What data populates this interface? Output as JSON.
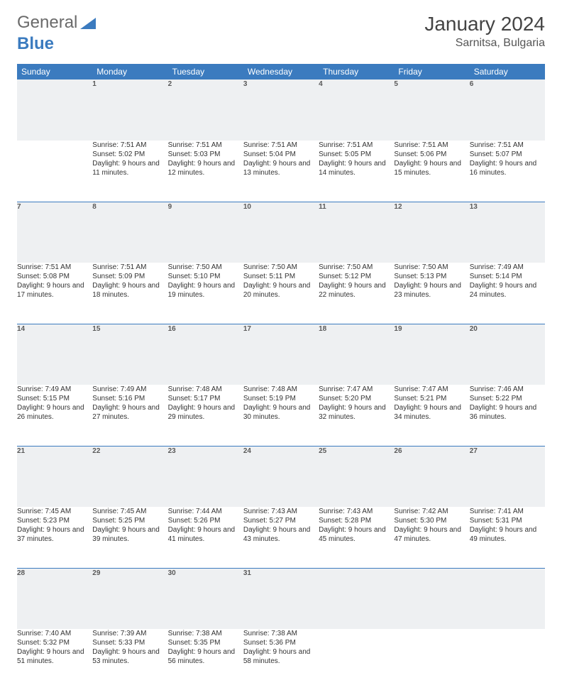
{
  "brand": {
    "part1": "General",
    "part2": "Blue"
  },
  "title": "January 2024",
  "location": "Sarnitsa, Bulgaria",
  "colors": {
    "header_bg": "#3b7bbf",
    "header_text": "#ffffff",
    "daynum_bg": "#eef0f2",
    "text": "#333333",
    "row_divider": "#3b7bbf"
  },
  "weekdays": [
    "Sunday",
    "Monday",
    "Tuesday",
    "Wednesday",
    "Thursday",
    "Friday",
    "Saturday"
  ],
  "weeks": [
    {
      "nums": [
        "",
        "1",
        "2",
        "3",
        "4",
        "5",
        "6"
      ],
      "cells": [
        null,
        {
          "sunrise": "7:51 AM",
          "sunset": "5:02 PM",
          "daylight": "9 hours and 11 minutes."
        },
        {
          "sunrise": "7:51 AM",
          "sunset": "5:03 PM",
          "daylight": "9 hours and 12 minutes."
        },
        {
          "sunrise": "7:51 AM",
          "sunset": "5:04 PM",
          "daylight": "9 hours and 13 minutes."
        },
        {
          "sunrise": "7:51 AM",
          "sunset": "5:05 PM",
          "daylight": "9 hours and 14 minutes."
        },
        {
          "sunrise": "7:51 AM",
          "sunset": "5:06 PM",
          "daylight": "9 hours and 15 minutes."
        },
        {
          "sunrise": "7:51 AM",
          "sunset": "5:07 PM",
          "daylight": "9 hours and 16 minutes."
        }
      ]
    },
    {
      "nums": [
        "7",
        "8",
        "9",
        "10",
        "11",
        "12",
        "13"
      ],
      "cells": [
        {
          "sunrise": "7:51 AM",
          "sunset": "5:08 PM",
          "daylight": "9 hours and 17 minutes."
        },
        {
          "sunrise": "7:51 AM",
          "sunset": "5:09 PM",
          "daylight": "9 hours and 18 minutes."
        },
        {
          "sunrise": "7:50 AM",
          "sunset": "5:10 PM",
          "daylight": "9 hours and 19 minutes."
        },
        {
          "sunrise": "7:50 AM",
          "sunset": "5:11 PM",
          "daylight": "9 hours and 20 minutes."
        },
        {
          "sunrise": "7:50 AM",
          "sunset": "5:12 PM",
          "daylight": "9 hours and 22 minutes."
        },
        {
          "sunrise": "7:50 AM",
          "sunset": "5:13 PM",
          "daylight": "9 hours and 23 minutes."
        },
        {
          "sunrise": "7:49 AM",
          "sunset": "5:14 PM",
          "daylight": "9 hours and 24 minutes."
        }
      ]
    },
    {
      "nums": [
        "14",
        "15",
        "16",
        "17",
        "18",
        "19",
        "20"
      ],
      "cells": [
        {
          "sunrise": "7:49 AM",
          "sunset": "5:15 PM",
          "daylight": "9 hours and 26 minutes."
        },
        {
          "sunrise": "7:49 AM",
          "sunset": "5:16 PM",
          "daylight": "9 hours and 27 minutes."
        },
        {
          "sunrise": "7:48 AM",
          "sunset": "5:17 PM",
          "daylight": "9 hours and 29 minutes."
        },
        {
          "sunrise": "7:48 AM",
          "sunset": "5:19 PM",
          "daylight": "9 hours and 30 minutes."
        },
        {
          "sunrise": "7:47 AM",
          "sunset": "5:20 PM",
          "daylight": "9 hours and 32 minutes."
        },
        {
          "sunrise": "7:47 AM",
          "sunset": "5:21 PM",
          "daylight": "9 hours and 34 minutes."
        },
        {
          "sunrise": "7:46 AM",
          "sunset": "5:22 PM",
          "daylight": "9 hours and 36 minutes."
        }
      ]
    },
    {
      "nums": [
        "21",
        "22",
        "23",
        "24",
        "25",
        "26",
        "27"
      ],
      "cells": [
        {
          "sunrise": "7:45 AM",
          "sunset": "5:23 PM",
          "daylight": "9 hours and 37 minutes."
        },
        {
          "sunrise": "7:45 AM",
          "sunset": "5:25 PM",
          "daylight": "9 hours and 39 minutes."
        },
        {
          "sunrise": "7:44 AM",
          "sunset": "5:26 PM",
          "daylight": "9 hours and 41 minutes."
        },
        {
          "sunrise": "7:43 AM",
          "sunset": "5:27 PM",
          "daylight": "9 hours and 43 minutes."
        },
        {
          "sunrise": "7:43 AM",
          "sunset": "5:28 PM",
          "daylight": "9 hours and 45 minutes."
        },
        {
          "sunrise": "7:42 AM",
          "sunset": "5:30 PM",
          "daylight": "9 hours and 47 minutes."
        },
        {
          "sunrise": "7:41 AM",
          "sunset": "5:31 PM",
          "daylight": "9 hours and 49 minutes."
        }
      ]
    },
    {
      "nums": [
        "28",
        "29",
        "30",
        "31",
        "",
        "",
        ""
      ],
      "cells": [
        {
          "sunrise": "7:40 AM",
          "sunset": "5:32 PM",
          "daylight": "9 hours and 51 minutes."
        },
        {
          "sunrise": "7:39 AM",
          "sunset": "5:33 PM",
          "daylight": "9 hours and 53 minutes."
        },
        {
          "sunrise": "7:38 AM",
          "sunset": "5:35 PM",
          "daylight": "9 hours and 56 minutes."
        },
        {
          "sunrise": "7:38 AM",
          "sunset": "5:36 PM",
          "daylight": "9 hours and 58 minutes."
        },
        null,
        null,
        null
      ]
    }
  ],
  "labels": {
    "sunrise": "Sunrise:",
    "sunset": "Sunset:",
    "daylight": "Daylight:"
  }
}
